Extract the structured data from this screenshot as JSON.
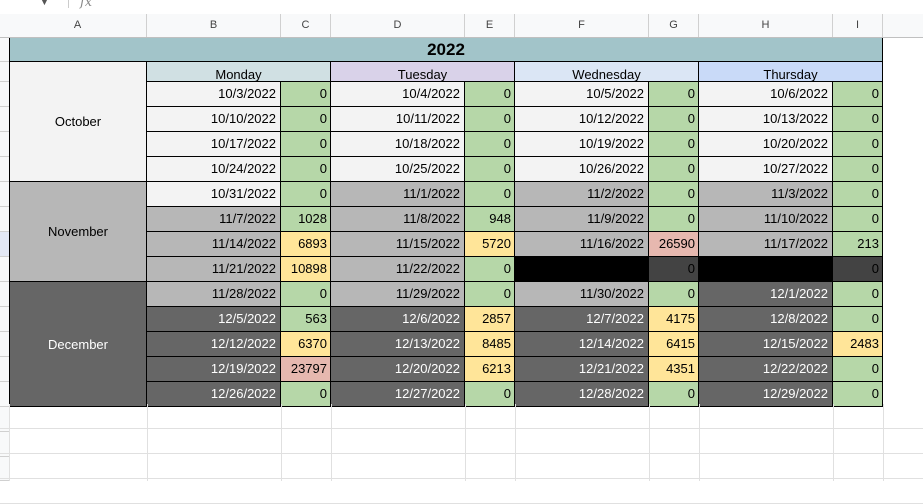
{
  "formula_bar": {
    "fx_label": "fx",
    "dropdown_icon": "chevron-down-icon"
  },
  "columns": [
    "A",
    "B",
    "C",
    "D",
    "E",
    "F",
    "G",
    "H",
    "I"
  ],
  "sheet": {
    "title": "2022",
    "days": [
      "Monday",
      "Tuesday",
      "Wednesday",
      "Thursday"
    ],
    "months": [
      {
        "name": "October",
        "bg": "#f3f3f3",
        "color": "#000000"
      },
      {
        "name": "November",
        "bg": "#b7b7b7",
        "color": "#000000"
      },
      {
        "name": "December",
        "bg": "#666666",
        "color": "#ffffff"
      }
    ],
    "colors": {
      "light_row": "#f3f3f3",
      "mid_row": "#b7b7b7",
      "dark_row": "#666666",
      "black": "#000000",
      "dark_black": "#434343",
      "green": "#b6d7a8",
      "yellow": "#ffe599",
      "red": "#e6b8af"
    },
    "rows": [
      {
        "bg": "light",
        "cells": [
          {
            "date": "10/3/2022",
            "value": "0",
            "vbg": "green"
          },
          {
            "date": "10/4/2022",
            "value": "0",
            "vbg": "green"
          },
          {
            "date": "10/5/2022",
            "value": "0",
            "vbg": "green"
          },
          {
            "date": "10/6/2022",
            "value": "0",
            "vbg": "green"
          }
        ]
      },
      {
        "bg": "light",
        "cells": [
          {
            "date": "10/10/2022",
            "value": "0",
            "vbg": "green"
          },
          {
            "date": "10/11/2022",
            "value": "0",
            "vbg": "green"
          },
          {
            "date": "10/12/2022",
            "value": "0",
            "vbg": "green"
          },
          {
            "date": "10/13/2022",
            "value": "0",
            "vbg": "green"
          }
        ]
      },
      {
        "bg": "light",
        "cells": [
          {
            "date": "10/17/2022",
            "value": "0",
            "vbg": "green"
          },
          {
            "date": "10/18/2022",
            "value": "0",
            "vbg": "green"
          },
          {
            "date": "10/19/2022",
            "value": "0",
            "vbg": "green"
          },
          {
            "date": "10/20/2022",
            "value": "0",
            "vbg": "green"
          }
        ]
      },
      {
        "bg": "light",
        "cells": [
          {
            "date": "10/24/2022",
            "value": "0",
            "vbg": "green"
          },
          {
            "date": "10/25/2022",
            "value": "0",
            "vbg": "green"
          },
          {
            "date": "10/26/2022",
            "value": "0",
            "vbg": "green"
          },
          {
            "date": "10/27/2022",
            "value": "0",
            "vbg": "green"
          }
        ]
      },
      {
        "bg": "mixed",
        "cells": [
          {
            "date": "10/31/2022",
            "value": "0",
            "vbg": "green",
            "dbg": "light"
          },
          {
            "date": "11/1/2022",
            "value": "0",
            "vbg": "green",
            "dbg": "mid"
          },
          {
            "date": "11/2/2022",
            "value": "0",
            "vbg": "green",
            "dbg": "mid"
          },
          {
            "date": "11/3/2022",
            "value": "0",
            "vbg": "green",
            "dbg": "mid"
          }
        ]
      },
      {
        "bg": "mid",
        "cells": [
          {
            "date": "11/7/2022",
            "value": "1028",
            "vbg": "green"
          },
          {
            "date": "11/8/2022",
            "value": "948",
            "vbg": "green"
          },
          {
            "date": "11/9/2022",
            "value": "0",
            "vbg": "green"
          },
          {
            "date": "11/10/2022",
            "value": "0",
            "vbg": "green"
          }
        ]
      },
      {
        "bg": "mid",
        "cells": [
          {
            "date": "11/14/2022",
            "value": "6893",
            "vbg": "yellow"
          },
          {
            "date": "11/15/2022",
            "value": "5720",
            "vbg": "yellow"
          },
          {
            "date": "11/16/2022",
            "value": "26590",
            "vbg": "red"
          },
          {
            "date": "11/17/2022",
            "value": "213",
            "vbg": "green"
          }
        ]
      },
      {
        "bg": "mid",
        "cells": [
          {
            "date": "11/21/2022",
            "value": "10898",
            "vbg": "yellow"
          },
          {
            "date": "11/22/2022",
            "value": "0",
            "vbg": "green"
          },
          {
            "date": "",
            "value": "0",
            "vbg": "dark_black",
            "dbg": "black"
          },
          {
            "date": "",
            "value": "0",
            "vbg": "dark_black",
            "dbg": "black"
          }
        ]
      },
      {
        "bg": "mixed",
        "cells": [
          {
            "date": "11/28/2022",
            "value": "0",
            "vbg": "green",
            "dbg": "mid"
          },
          {
            "date": "11/29/2022",
            "value": "0",
            "vbg": "green",
            "dbg": "mid"
          },
          {
            "date": "11/30/2022",
            "value": "0",
            "vbg": "green",
            "dbg": "mid"
          },
          {
            "date": "12/1/2022",
            "value": "0",
            "vbg": "green",
            "dbg": "dark"
          }
        ]
      },
      {
        "bg": "dark",
        "cells": [
          {
            "date": "12/5/2022",
            "value": "563",
            "vbg": "green"
          },
          {
            "date": "12/6/2022",
            "value": "2857",
            "vbg": "yellow"
          },
          {
            "date": "12/7/2022",
            "value": "4175",
            "vbg": "yellow"
          },
          {
            "date": "12/8/2022",
            "value": "0",
            "vbg": "green"
          }
        ]
      },
      {
        "bg": "dark",
        "cells": [
          {
            "date": "12/12/2022",
            "value": "6370",
            "vbg": "yellow"
          },
          {
            "date": "12/13/2022",
            "value": "8485",
            "vbg": "yellow"
          },
          {
            "date": "12/14/2022",
            "value": "6415",
            "vbg": "yellow"
          },
          {
            "date": "12/15/2022",
            "value": "2483",
            "vbg": "yellow"
          }
        ]
      },
      {
        "bg": "dark",
        "cells": [
          {
            "date": "12/19/2022",
            "value": "23797",
            "vbg": "red"
          },
          {
            "date": "12/20/2022",
            "value": "6213",
            "vbg": "yellow"
          },
          {
            "date": "12/21/2022",
            "value": "4351",
            "vbg": "yellow"
          },
          {
            "date": "12/22/2022",
            "value": "0",
            "vbg": "green"
          }
        ]
      },
      {
        "bg": "dark",
        "cells": [
          {
            "date": "12/26/2022",
            "value": "0",
            "vbg": "green"
          },
          {
            "date": "12/27/2022",
            "value": "0",
            "vbg": "green"
          },
          {
            "date": "12/28/2022",
            "value": "0",
            "vbg": "green"
          },
          {
            "date": "12/29/2022",
            "value": "0",
            "vbg": "green"
          }
        ]
      }
    ]
  }
}
